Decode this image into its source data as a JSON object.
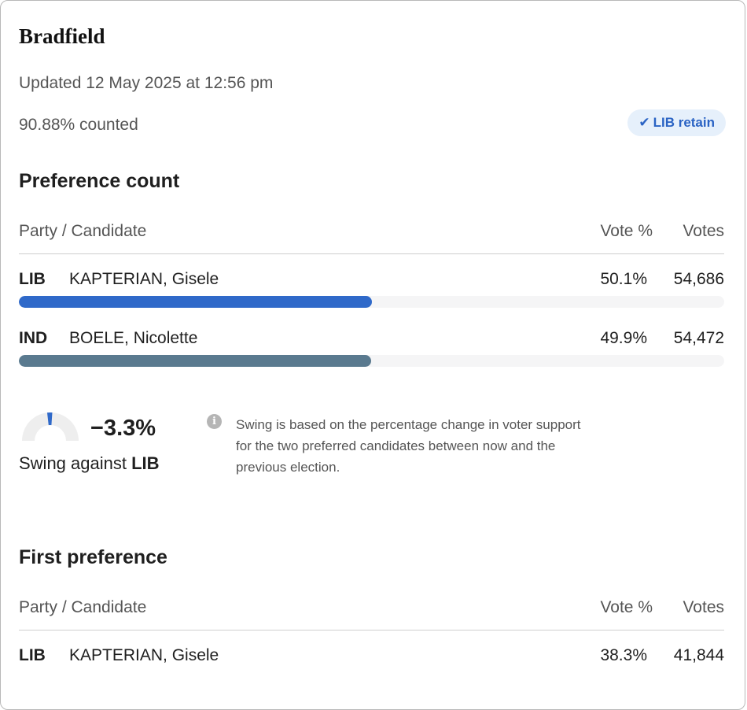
{
  "electorate": {
    "name": "Bradfield",
    "updated": "Updated 12 May 2025 at 12:56 pm",
    "counted": "90.88% counted",
    "status_badge": "LIB retain",
    "status_icon": "check-icon",
    "colors": {
      "accent": "#2f69c9",
      "ind": "#5a7a8f",
      "badge_bg": "#e6f0fb"
    }
  },
  "preference_count": {
    "title": "Preference count",
    "headers": {
      "candidate": "Party / Candidate",
      "vote_pct": "Vote %",
      "votes": "Votes"
    },
    "rows": [
      {
        "party": "LIB",
        "name": "KAPTERIAN, Gisele",
        "pct": "50.1%",
        "votes": "54,686",
        "share": 50.1,
        "color": "#2f69c9"
      },
      {
        "party": "IND",
        "name": "BOELE, Nicolette",
        "pct": "49.9%",
        "votes": "54,472",
        "share": 49.9,
        "color": "#5a7a8f"
      }
    ]
  },
  "swing": {
    "value": "−3.3%",
    "label_prefix": "Swing against ",
    "label_party": "LIB",
    "info_icon": "info-icon",
    "info_text": "Swing is based on the percentage change in voter support for the two preferred candidates between now and the previous election."
  },
  "first_preference": {
    "title": "First preference",
    "headers": {
      "candidate": "Party / Candidate",
      "vote_pct": "Vote %",
      "votes": "Votes"
    },
    "rows": [
      {
        "party": "LIB",
        "name": "KAPTERIAN, Gisele",
        "pct": "38.3%",
        "votes": "41,844"
      }
    ]
  }
}
